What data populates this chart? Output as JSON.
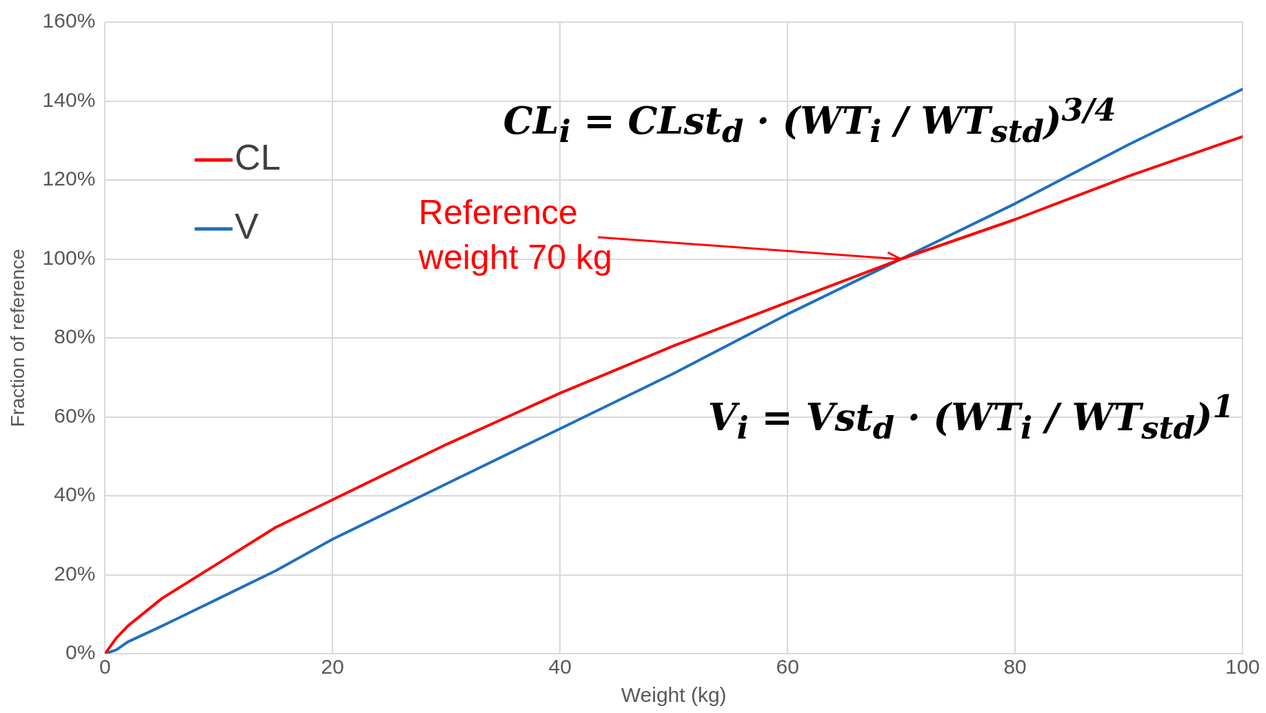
{
  "chart_data": {
    "type": "line",
    "xlabel": "Weight (kg)",
    "ylabel": "Fraction of reference",
    "x": [
      0,
      1,
      2,
      5,
      10,
      15,
      20,
      30,
      40,
      50,
      60,
      70,
      80,
      90,
      100
    ],
    "series": [
      {
        "name": "CL",
        "color": "#ff0000",
        "values": [
          0,
          4,
          7,
          14,
          23,
          32,
          39,
          53,
          66,
          78,
          89,
          100,
          110,
          121,
          131
        ]
      },
      {
        "name": "V",
        "color": "#1f6fc0",
        "values": [
          0,
          1,
          3,
          7,
          14,
          21,
          29,
          43,
          57,
          71,
          86,
          100,
          114,
          129,
          143
        ]
      }
    ],
    "xlim": [
      0,
      100
    ],
    "xticks": [
      0,
      20,
      40,
      60,
      80,
      100
    ],
    "ylim": [
      0,
      160
    ],
    "yticks": [
      {
        "value": 0,
        "label": "0%"
      },
      {
        "value": 20,
        "label": "20%"
      },
      {
        "value": 40,
        "label": "40%"
      },
      {
        "value": 60,
        "label": "60%"
      },
      {
        "value": 80,
        "label": "80%"
      },
      {
        "value": 100,
        "label": "100%"
      },
      {
        "value": 120,
        "label": "120%"
      },
      {
        "value": 140,
        "label": "140%"
      },
      {
        "value": 160,
        "label": "160%"
      }
    ],
    "grid": true,
    "legend": "top left",
    "marker": "none",
    "line_style": "solid",
    "annotations": [
      {
        "text": "Reference weight 70 kg",
        "x": 70,
        "y": 100
      },
      "CL$_{i}$ = CLst$_{d}$ · (WT$_{i}$ / WT$_{std}$)$^{3/4}$",
      "V$_{i}$ = Vst$_{d}$ · (WT$_{i}$ / WT$_{std}$)$^{1}$"
    ]
  }
}
